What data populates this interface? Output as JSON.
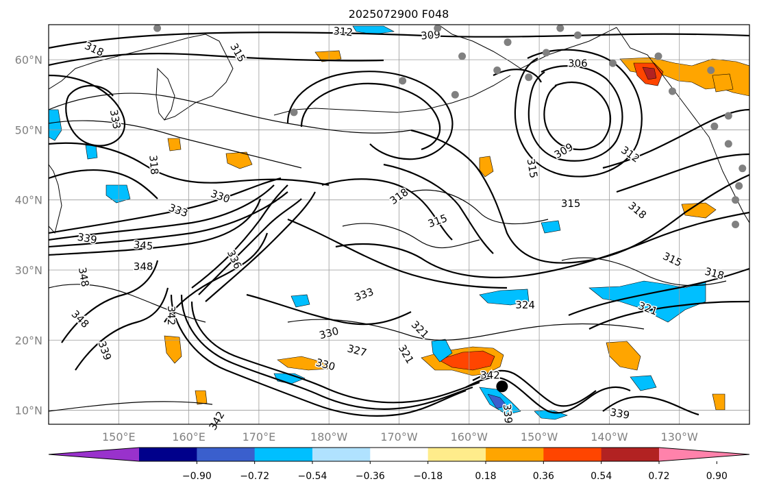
{
  "title": "2025072900 F048",
  "lat_labels": [
    "60°N",
    "50°N",
    "40°N",
    "30°N",
    "20°N",
    "10°N"
  ],
  "lat_values": [
    60,
    50,
    40,
    30,
    20,
    10
  ],
  "lon_labels": [
    "150°E",
    "160°E",
    "170°E",
    "180°W",
    "170°W",
    "160°W",
    "150°W",
    "140°W",
    "130°W"
  ],
  "lon_values": [
    150,
    160,
    170,
    180,
    190,
    200,
    210,
    220,
    230
  ],
  "extent": {
    "lon_min": 140,
    "lon_max": 240,
    "lat_min": 8,
    "lat_max": 65
  },
  "colorbar": {
    "ticks": [
      "−0.90",
      "−0.72",
      "−0.54",
      "−0.36",
      "−0.18",
      "0.18",
      "0.36",
      "0.54",
      "0.72",
      "0.90"
    ],
    "colors": [
      "#9932cc",
      "#00008b",
      "#3a5fcd",
      "#00bfff",
      "#b0e2ff",
      "#ffffff",
      "#ffec8b",
      "#ffa500",
      "#ff4500",
      "#b22222",
      "#ff82ab"
    ]
  },
  "contour_labels": [
    {
      "text": "318",
      "lon": 146.5,
      "lat": 61.5,
      "rot": 25
    },
    {
      "text": "312",
      "lon": 182,
      "lat": 64,
      "rot": 5
    },
    {
      "text": "309",
      "lon": 194.5,
      "lat": 63.5,
      "rot": -5
    },
    {
      "text": "315",
      "lon": 167,
      "lat": 61,
      "rot": 60
    },
    {
      "text": "306",
      "lon": 215.5,
      "lat": 59.5,
      "rot": 0
    },
    {
      "text": "333",
      "lon": 149.5,
      "lat": 51.5,
      "rot": 80
    },
    {
      "text": "318",
      "lon": 155,
      "lat": 45,
      "rot": 85
    },
    {
      "text": "330",
      "lon": 164.5,
      "lat": 40.5,
      "rot": 20
    },
    {
      "text": "333",
      "lon": 158.5,
      "lat": 38.5,
      "rot": 20
    },
    {
      "text": "339",
      "lon": 145.5,
      "lat": 34.5,
      "rot": 10
    },
    {
      "text": "345",
      "lon": 153.5,
      "lat": 33.5,
      "rot": 5
    },
    {
      "text": "348",
      "lon": 153.5,
      "lat": 30.5,
      "rot": 0
    },
    {
      "text": "348",
      "lon": 145,
      "lat": 29,
      "rot": 80
    },
    {
      "text": "336",
      "lon": 166.5,
      "lat": 31.5,
      "rot": 65
    },
    {
      "text": "342",
      "lon": 157.5,
      "lat": 23.5,
      "rot": 90
    },
    {
      "text": "348",
      "lon": 144.5,
      "lat": 23,
      "rot": 45
    },
    {
      "text": "339",
      "lon": 148,
      "lat": 18.5,
      "rot": 70
    },
    {
      "text": "318",
      "lon": 190,
      "lat": 40.5,
      "rot": -35
    },
    {
      "text": "315",
      "lon": 195.5,
      "lat": 37,
      "rot": -20
    },
    {
      "text": "315",
      "lon": 209,
      "lat": 44.5,
      "rot": 80
    },
    {
      "text": "309",
      "lon": 213.5,
      "lat": 47,
      "rot": -30
    },
    {
      "text": "312",
      "lon": 223,
      "lat": 46.5,
      "rot": 35
    },
    {
      "text": "315",
      "lon": 214.5,
      "lat": 39.5,
      "rot": 0
    },
    {
      "text": "318",
      "lon": 224,
      "lat": 38.5,
      "rot": 40
    },
    {
      "text": "315",
      "lon": 229,
      "lat": 31.5,
      "rot": 25
    },
    {
      "text": "318",
      "lon": 235,
      "lat": 29.5,
      "rot": 15
    },
    {
      "text": "333",
      "lon": 185,
      "lat": 26.5,
      "rot": -20
    },
    {
      "text": "330",
      "lon": 180,
      "lat": 21,
      "rot": -15
    },
    {
      "text": "327",
      "lon": 184,
      "lat": 18.5,
      "rot": 15
    },
    {
      "text": "330",
      "lon": 179.5,
      "lat": 16.5,
      "rot": 15
    },
    {
      "text": "321",
      "lon": 191,
      "lat": 18,
      "rot": 60
    },
    {
      "text": "321",
      "lon": 193,
      "lat": 21.5,
      "rot": 45
    },
    {
      "text": "324",
      "lon": 208,
      "lat": 25,
      "rot": 0
    },
    {
      "text": "321",
      "lon": 225.5,
      "lat": 24.5,
      "rot": 20
    },
    {
      "text": "342",
      "lon": 203,
      "lat": 15,
      "rot": 0
    },
    {
      "text": "339",
      "lon": 205.5,
      "lat": 9.5,
      "rot": 85
    },
    {
      "text": "339",
      "lon": 221.5,
      "lat": 9.5,
      "rot": 10
    },
    {
      "text": "342",
      "lon": 164,
      "lat": 8.5,
      "rot": -60
    }
  ],
  "stations": [
    {
      "lon": 155.5,
      "lat": 64.5
    },
    {
      "lon": 195.5,
      "lat": 64.5
    },
    {
      "lon": 213,
      "lat": 64.5
    },
    {
      "lon": 215.5,
      "lat": 63.5
    },
    {
      "lon": 205.5,
      "lat": 62.5
    },
    {
      "lon": 199,
      "lat": 60.5
    },
    {
      "lon": 211,
      "lat": 61
    },
    {
      "lon": 220.5,
      "lat": 59.5
    },
    {
      "lon": 227,
      "lat": 60.5
    },
    {
      "lon": 204,
      "lat": 58.5
    },
    {
      "lon": 208.5,
      "lat": 57.5
    },
    {
      "lon": 190.5,
      "lat": 57
    },
    {
      "lon": 198,
      "lat": 55
    },
    {
      "lon": 175,
      "lat": 52.5
    },
    {
      "lon": 234.5,
      "lat": 58.5
    },
    {
      "lon": 237,
      "lat": 52
    },
    {
      "lon": 235,
      "lat": 50.5
    },
    {
      "lon": 237,
      "lat": 48
    },
    {
      "lon": 239,
      "lat": 44.5
    },
    {
      "lon": 238.5,
      "lat": 42
    },
    {
      "lon": 238,
      "lat": 40
    },
    {
      "lon": 238,
      "lat": 36.5
    },
    {
      "lon": 229,
      "lat": 55.5
    }
  ],
  "marker": {
    "lon": 204.7,
    "lat": 13.4
  }
}
